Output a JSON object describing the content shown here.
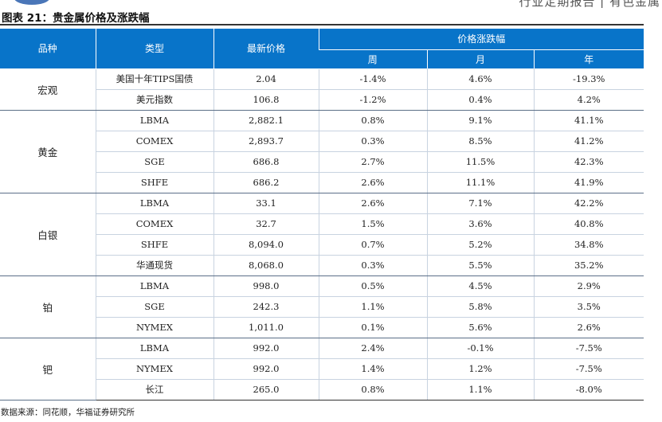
{
  "header_fragment": "行业定期报告 | 有色金属",
  "title": "图表 21：贵金属价格及涨跌幅",
  "table": {
    "headers": {
      "category": "品种",
      "type": "类型",
      "latest_price": "最新价格",
      "change_group": "价格涨跌幅",
      "week": "周",
      "month": "月",
      "year": "年"
    },
    "groups": [
      {
        "name": "宏观",
        "rows": [
          {
            "type": "美国十年TIPS国债",
            "price": "2.04",
            "week": "-1.4%",
            "month": "4.6%",
            "year": "-19.3%"
          },
          {
            "type": "美元指数",
            "price": "106.8",
            "week": "-1.2%",
            "month": "0.4%",
            "year": "4.2%"
          }
        ]
      },
      {
        "name": "黄金",
        "rows": [
          {
            "type": "LBMA",
            "price": "2,882.1",
            "week": "0.8%",
            "month": "9.1%",
            "year": "41.1%"
          },
          {
            "type": "COMEX",
            "price": "2,893.7",
            "week": "0.3%",
            "month": "8.5%",
            "year": "41.2%"
          },
          {
            "type": "SGE",
            "price": "686.8",
            "week": "2.7%",
            "month": "11.5%",
            "year": "42.3%"
          },
          {
            "type": "SHFE",
            "price": "686.2",
            "week": "2.6%",
            "month": "11.1%",
            "year": "41.9%"
          }
        ]
      },
      {
        "name": "白银",
        "rows": [
          {
            "type": "LBMA",
            "price": "33.1",
            "week": "2.6%",
            "month": "7.1%",
            "year": "42.2%"
          },
          {
            "type": "COMEX",
            "price": "32.7",
            "week": "1.5%",
            "month": "3.6%",
            "year": "40.8%"
          },
          {
            "type": "SHFE",
            "price": "8,094.0",
            "week": "0.7%",
            "month": "5.2%",
            "year": "34.8%"
          },
          {
            "type": "华通现货",
            "price": "8,068.0",
            "week": "0.3%",
            "month": "5.5%",
            "year": "35.2%"
          }
        ]
      },
      {
        "name": "铂",
        "rows": [
          {
            "type": "LBMA",
            "price": "998.0",
            "week": "0.5%",
            "month": "4.5%",
            "year": "2.9%"
          },
          {
            "type": "SGE",
            "price": "242.3",
            "week": "1.1%",
            "month": "5.8%",
            "year": "3.5%"
          },
          {
            "type": "NYMEX",
            "price": "1,011.0",
            "week": "0.1%",
            "month": "5.6%",
            "year": "2.6%"
          }
        ]
      },
      {
        "name": "钯",
        "rows": [
          {
            "type": "LBMA",
            "price": "992.0",
            "week": "2.4%",
            "month": "-0.1%",
            "year": "-7.5%"
          },
          {
            "type": "NYMEX",
            "price": "992.0",
            "week": "1.4%",
            "month": "1.2%",
            "year": "-7.5%"
          },
          {
            "type": "长江",
            "price": "265.0",
            "week": "0.8%",
            "month": "1.1%",
            "year": "-8.0%"
          }
        ]
      }
    ]
  },
  "source": "数据来源：同花顺，华福证券研究所"
}
